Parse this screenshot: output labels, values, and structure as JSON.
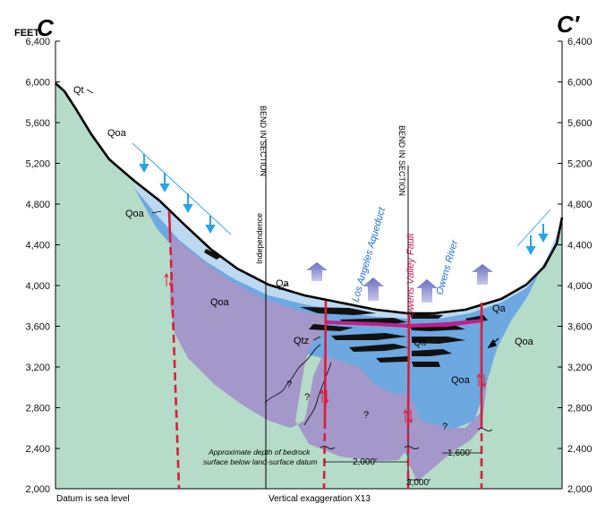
{
  "section": {
    "start_label": "C",
    "end_label": "C′",
    "unit_label": "FEET"
  },
  "y_axis": {
    "ticks": [
      "6,400",
      "6,000",
      "5,600",
      "5,200",
      "4,800",
      "4,400",
      "4,000",
      "3,600",
      "3,200",
      "2,800",
      "2,400",
      "2,000"
    ]
  },
  "units": {
    "Qt": "Qt",
    "Qoa": "Qoa",
    "Qa": "Qa",
    "Qtz": "Qtz",
    "Qfl": "Qfl"
  },
  "labels": {
    "independence": "Independence",
    "bend_1": "BEND IN SECTION",
    "bend_2": "BEND IN SECTION",
    "aqueduct": "Los Angeles Aqueduct",
    "fault": "Owens Valley Fault",
    "river": "Owens River",
    "bedrock_note_1": "Approximate depth of bedrock",
    "bedrock_note_2": "surface below land-surface datum",
    "depth_1": "2,000′",
    "depth_2": "3,000′",
    "depth_3": "1,600′",
    "question": "?"
  },
  "footer": {
    "datum": "Datum is sea level",
    "exaggeration": "Vertical exaggeration X13"
  },
  "colors": {
    "bedrock": "#b5dcc8",
    "qoa_purple": "#a497c9",
    "aquifer_blue": "#6ea8e0",
    "light_blue": "#bcd9f1",
    "clay_black": "#111111",
    "fault_red": "#d81e3a",
    "magenta": "#c0208a",
    "flow_arrow_blue": "#2aa4e8",
    "upward_arrow": "#7f82c9"
  }
}
